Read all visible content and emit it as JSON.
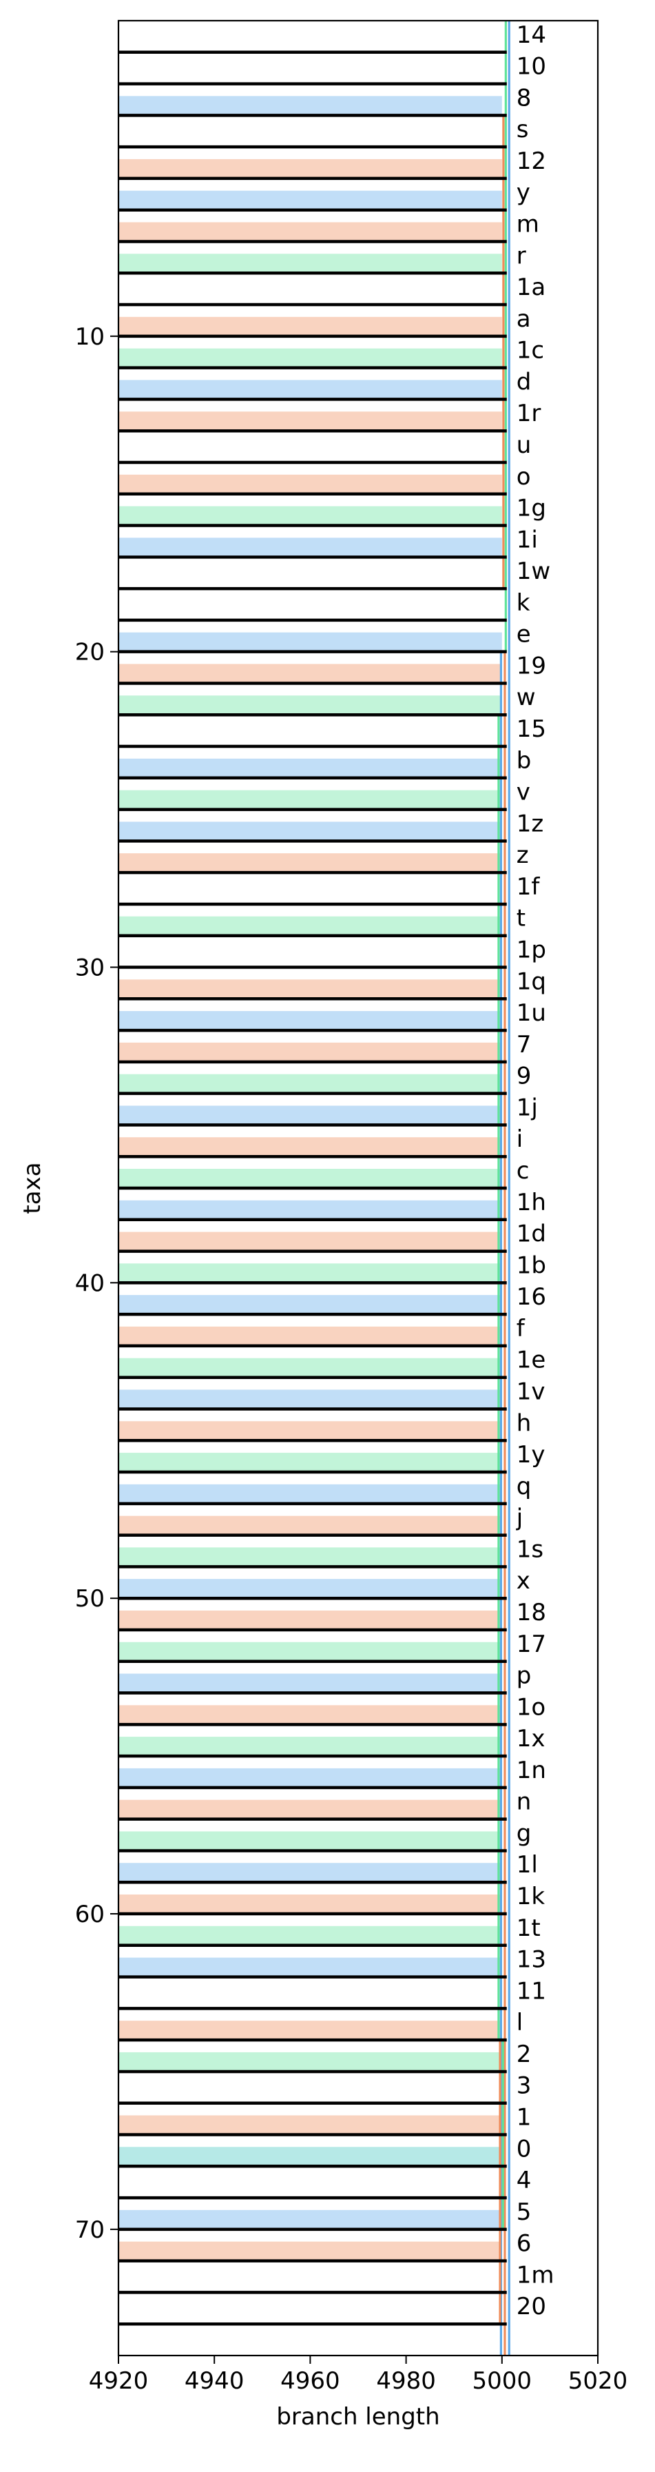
{
  "chart_data": {
    "type": "tree-branch-plot",
    "xlabel": "branch length",
    "ylabel": "taxa",
    "xlim": [
      4920,
      5020
    ],
    "ylim": [
      74,
      0
    ],
    "xticks": [
      "4920",
      "4940",
      "4960",
      "4980",
      "5000",
      "5020"
    ],
    "yticks": [
      "10",
      "20",
      "30",
      "40",
      "50",
      "60",
      "70"
    ],
    "colors": {
      "blue": "#5da9e9",
      "orange": "#f08c5a",
      "green": "#5fe39a",
      "teal": "#3ec6c0",
      "black": "#000000"
    },
    "taxa": [
      {
        "y": 1,
        "label": "14",
        "band": null
      },
      {
        "y": 2,
        "label": "10",
        "band": null
      },
      {
        "y": 3,
        "label": "8",
        "band": "blue"
      },
      {
        "y": 4,
        "label": "s",
        "band": null
      },
      {
        "y": 5,
        "label": "12",
        "band": "orange"
      },
      {
        "y": 6,
        "label": "y",
        "band": "blue"
      },
      {
        "y": 7,
        "label": "m",
        "band": "orange"
      },
      {
        "y": 8,
        "label": "r",
        "band": "green"
      },
      {
        "y": 9,
        "label": "1a",
        "band": null
      },
      {
        "y": 10,
        "label": "a",
        "band": "orange"
      },
      {
        "y": 11,
        "label": "1c",
        "band": "green"
      },
      {
        "y": 12,
        "label": "d",
        "band": "blue"
      },
      {
        "y": 13,
        "label": "1r",
        "band": "orange"
      },
      {
        "y": 14,
        "label": "u",
        "band": null
      },
      {
        "y": 15,
        "label": "o",
        "band": "orange"
      },
      {
        "y": 16,
        "label": "1g",
        "band": "green"
      },
      {
        "y": 17,
        "label": "1i",
        "band": "blue"
      },
      {
        "y": 18,
        "label": "1w",
        "band": null
      },
      {
        "y": 19,
        "label": "k",
        "band": null
      },
      {
        "y": 20,
        "label": "e",
        "band": "blue"
      },
      {
        "y": 21,
        "label": "19",
        "band": "orange"
      },
      {
        "y": 22,
        "label": "w",
        "band": "green"
      },
      {
        "y": 23,
        "label": "15",
        "band": null
      },
      {
        "y": 24,
        "label": "b",
        "band": "blue"
      },
      {
        "y": 25,
        "label": "v",
        "band": "green"
      },
      {
        "y": 26,
        "label": "1z",
        "band": "blue"
      },
      {
        "y": 27,
        "label": "z",
        "band": "orange"
      },
      {
        "y": 28,
        "label": "1f",
        "band": null
      },
      {
        "y": 29,
        "label": "t",
        "band": "green"
      },
      {
        "y": 30,
        "label": "1p",
        "band": null
      },
      {
        "y": 31,
        "label": "1q",
        "band": "orange"
      },
      {
        "y": 32,
        "label": "1u",
        "band": "blue"
      },
      {
        "y": 33,
        "label": "7",
        "band": "orange"
      },
      {
        "y": 34,
        "label": "9",
        "band": "green"
      },
      {
        "y": 35,
        "label": "1j",
        "band": "blue"
      },
      {
        "y": 36,
        "label": "i",
        "band": "orange"
      },
      {
        "y": 37,
        "label": "c",
        "band": "green"
      },
      {
        "y": 38,
        "label": "1h",
        "band": "blue"
      },
      {
        "y": 39,
        "label": "1d",
        "band": "orange"
      },
      {
        "y": 40,
        "label": "1b",
        "band": "green"
      },
      {
        "y": 41,
        "label": "16",
        "band": "blue"
      },
      {
        "y": 42,
        "label": "f",
        "band": "orange"
      },
      {
        "y": 43,
        "label": "1e",
        "band": "green"
      },
      {
        "y": 44,
        "label": "1v",
        "band": "blue"
      },
      {
        "y": 45,
        "label": "h",
        "band": "orange"
      },
      {
        "y": 46,
        "label": "1y",
        "band": "green"
      },
      {
        "y": 47,
        "label": "q",
        "band": "blue"
      },
      {
        "y": 48,
        "label": "j",
        "band": "orange"
      },
      {
        "y": 49,
        "label": "1s",
        "band": "green"
      },
      {
        "y": 50,
        "label": "x",
        "band": "blue"
      },
      {
        "y": 51,
        "label": "18",
        "band": "orange"
      },
      {
        "y": 52,
        "label": "17",
        "band": "green"
      },
      {
        "y": 53,
        "label": "p",
        "band": "blue"
      },
      {
        "y": 54,
        "label": "1o",
        "band": "orange"
      },
      {
        "y": 55,
        "label": "1x",
        "band": "green"
      },
      {
        "y": 56,
        "label": "1n",
        "band": "blue"
      },
      {
        "y": 57,
        "label": "n",
        "band": "orange"
      },
      {
        "y": 58,
        "label": "g",
        "band": "green"
      },
      {
        "y": 59,
        "label": "1l",
        "band": "blue"
      },
      {
        "y": 60,
        "label": "1k",
        "band": "orange"
      },
      {
        "y": 61,
        "label": "1t",
        "band": "green"
      },
      {
        "y": 62,
        "label": "13",
        "band": "blue"
      },
      {
        "y": 63,
        "label": "11",
        "band": null
      },
      {
        "y": 64,
        "label": "l",
        "band": "orange"
      },
      {
        "y": 65,
        "label": "2",
        "band": "green"
      },
      {
        "y": 66,
        "label": "3",
        "band": null
      },
      {
        "y": 67,
        "label": "1",
        "band": "orange"
      },
      {
        "y": 68,
        "label": "0",
        "band": "teal"
      },
      {
        "y": 69,
        "label": "4",
        "band": null
      },
      {
        "y": 70,
        "label": "5",
        "band": "blue"
      },
      {
        "y": 71,
        "label": "6",
        "band": "orange"
      },
      {
        "y": 72,
        "label": "1m",
        "band": null
      },
      {
        "y": 73,
        "label": "20",
        "band": null
      }
    ],
    "branch_end": 5001,
    "band_end": 5000,
    "verticals": [
      {
        "color": "blue",
        "x": 5001.5,
        "y0": 0,
        "y1": 74
      },
      {
        "color": "green",
        "x": 5000.8,
        "y0": 0,
        "y1": 20
      },
      {
        "color": "orange",
        "x": 5000.3,
        "y0": 3,
        "y1": 18
      },
      {
        "color": "blue",
        "x": 4999.8,
        "y0": 20,
        "y1": 74
      },
      {
        "color": "orange",
        "x": 5000.6,
        "y0": 20,
        "y1": 74
      },
      {
        "color": "green",
        "x": 4999.3,
        "y0": 22,
        "y1": 64
      },
      {
        "color": "orange",
        "x": 4999.6,
        "y0": 64,
        "y1": 73
      },
      {
        "color": "green",
        "x": 5000.2,
        "y0": 64,
        "y1": 70
      }
    ]
  }
}
